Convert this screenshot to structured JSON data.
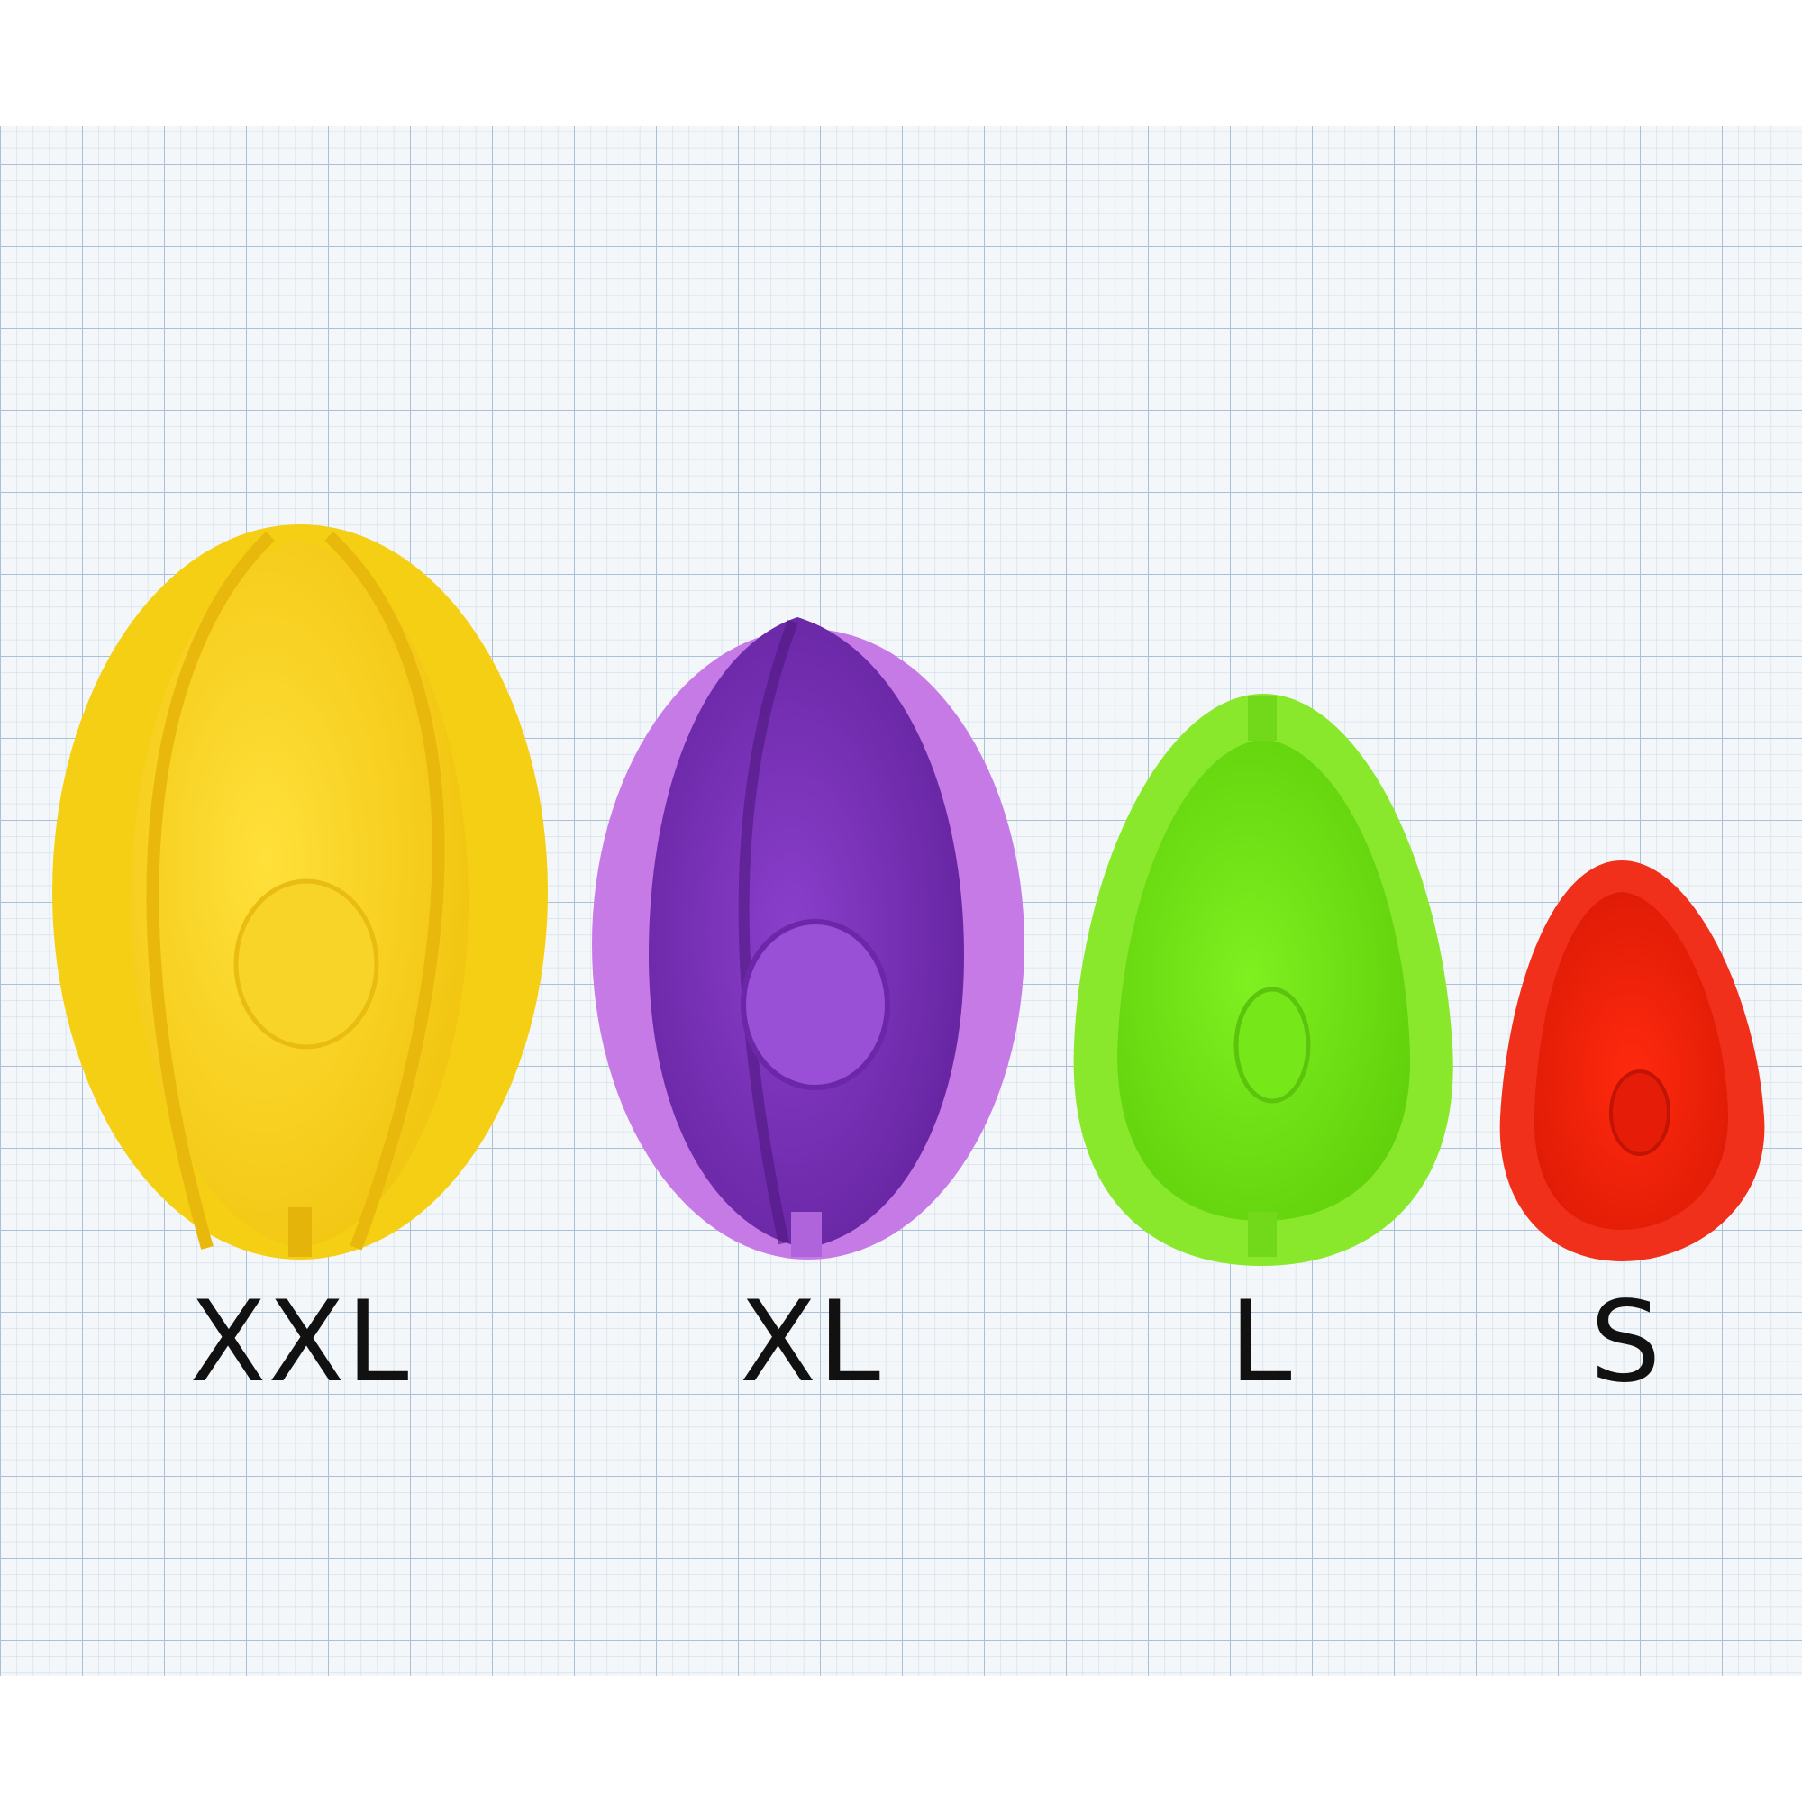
{
  "background": {
    "paper_color": "#f4f7f9",
    "grid_minor_color": "#cddbe8",
    "grid_major_color": "#a9c0d6"
  },
  "molds": [
    {
      "id": "xxl",
      "label": "XXL",
      "outer_color": "#f7d31a",
      "inner_color": "#f2c510",
      "shade_color": "#d8a90a"
    },
    {
      "id": "xl",
      "label": "XL",
      "outer_color": "#c77ae6",
      "inner_color": "#7a2fb6",
      "shade_color": "#5d1e94"
    },
    {
      "id": "l",
      "label": "L",
      "outer_color": "#8be82a",
      "inner_color": "#6ee010",
      "shade_color": "#4fb80a"
    },
    {
      "id": "s",
      "label": "S",
      "outer_color": "#f2331a",
      "inner_color": "#e81e08",
      "shade_color": "#c81404"
    }
  ]
}
